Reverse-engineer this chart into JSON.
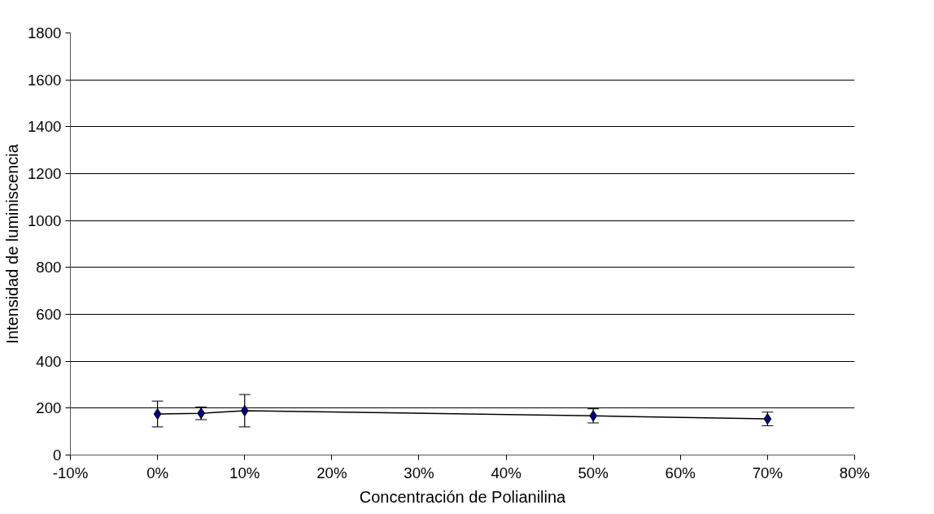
{
  "chart_data": {
    "type": "line",
    "xlabel": "Concentración de Polianilina",
    "ylabel": "Intensidad de luminiscencia",
    "x": [
      0,
      5,
      10,
      50,
      70
    ],
    "series": [
      {
        "color": "#000080",
        "values": [
          175,
          178,
          189,
          167,
          154
        ],
        "errors": [
          55,
          27,
          69,
          30,
          29
        ]
      }
    ],
    "marker": "diamond",
    "line_style": "solid",
    "grid": "y",
    "xlim": [
      -10,
      80
    ],
    "xticks": [
      {
        "value": -10,
        "label": "-10%"
      },
      {
        "value": 0,
        "label": "0%"
      },
      {
        "value": 10,
        "label": "10%"
      },
      {
        "value": 20,
        "label": "20%"
      },
      {
        "value": 30,
        "label": "30%"
      },
      {
        "value": 40,
        "label": "40%"
      },
      {
        "value": 50,
        "label": "50%"
      },
      {
        "value": 60,
        "label": "60%"
      },
      {
        "value": 70,
        "label": "70%"
      },
      {
        "value": 80,
        "label": "80%"
      }
    ],
    "ylim": [
      0,
      1800
    ],
    "yticks": [
      0,
      200,
      400,
      600,
      800,
      1000,
      1200,
      1400,
      1600,
      1800
    ]
  }
}
